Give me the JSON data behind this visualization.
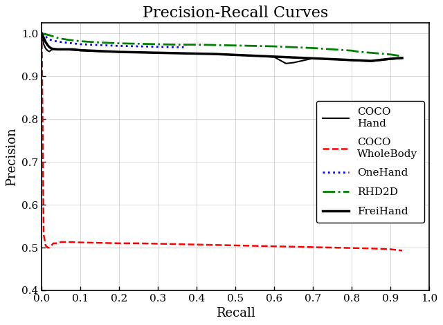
{
  "title": "Precision-Recall Curves",
  "xlabel": "Recall",
  "ylabel": "Precision",
  "xlim": [
    0.0,
    1.0
  ],
  "ylim": [
    0.4,
    1.025
  ],
  "yticks": [
    0.4,
    0.5,
    0.6,
    0.7,
    0.8,
    0.9,
    1.0
  ],
  "xticks": [
    0.0,
    0.1,
    0.2,
    0.3,
    0.4,
    0.5,
    0.6,
    0.7,
    0.8,
    0.9,
    1.0
  ],
  "curves": [
    {
      "label": "COCO\nHand",
      "color": "#000000",
      "linestyle": "solid",
      "linewidth": 1.5,
      "recall": [
        0.0,
        0.005,
        0.01,
        0.015,
        0.02,
        0.025,
        0.03,
        0.04,
        0.05,
        0.07,
        0.1,
        0.15,
        0.2,
        0.25,
        0.3,
        0.35,
        0.4,
        0.45,
        0.5,
        0.55,
        0.6,
        0.63,
        0.65,
        0.7,
        0.75,
        0.8,
        0.85,
        0.9,
        0.93
      ],
      "precision": [
        1.0,
        0.975,
        0.965,
        0.96,
        0.958,
        0.962,
        0.963,
        0.963,
        0.963,
        0.962,
        0.96,
        0.958,
        0.957,
        0.956,
        0.955,
        0.954,
        0.953,
        0.952,
        0.95,
        0.948,
        0.945,
        0.93,
        0.932,
        0.942,
        0.94,
        0.937,
        0.935,
        0.94,
        0.942
      ]
    },
    {
      "label": "COCO\nWholeBody",
      "color": "#ff0000",
      "linestyle": "dashed",
      "linewidth": 1.8,
      "recall": [
        0.0,
        0.005,
        0.01,
        0.015,
        0.02,
        0.025,
        0.03,
        0.04,
        0.05,
        0.07,
        0.1,
        0.15,
        0.2,
        0.25,
        0.3,
        0.35,
        0.4,
        0.45,
        0.5,
        0.55,
        0.6,
        0.65,
        0.7,
        0.75,
        0.8,
        0.85,
        0.9,
        0.93
      ],
      "precision": [
        1.0,
        0.53,
        0.505,
        0.5,
        0.5,
        0.505,
        0.51,
        0.51,
        0.513,
        0.513,
        0.512,
        0.511,
        0.51,
        0.51,
        0.509,
        0.508,
        0.507,
        0.506,
        0.505,
        0.504,
        0.503,
        0.502,
        0.501,
        0.5,
        0.499,
        0.498,
        0.496,
        0.493
      ]
    },
    {
      "label": "OneHand",
      "color": "#0000ff",
      "linestyle": "dotted",
      "linewidth": 2.0,
      "recall": [
        0.0,
        0.005,
        0.01,
        0.02,
        0.03,
        0.05,
        0.07,
        0.1,
        0.15,
        0.2,
        0.25,
        0.3,
        0.35,
        0.37
      ],
      "precision": [
        1.0,
        0.997,
        0.993,
        0.986,
        0.983,
        0.98,
        0.978,
        0.975,
        0.973,
        0.971,
        0.97,
        0.969,
        0.968,
        0.968
      ]
    },
    {
      "label": "RHD2D",
      "color": "#008000",
      "linestyle": "dashdot",
      "linewidth": 2.0,
      "recall": [
        0.0,
        0.005,
        0.01,
        0.02,
        0.03,
        0.04,
        0.05,
        0.07,
        0.1,
        0.15,
        0.2,
        0.25,
        0.3,
        0.35,
        0.4,
        0.45,
        0.5,
        0.55,
        0.6,
        0.65,
        0.7,
        0.75,
        0.8,
        0.82,
        0.85,
        0.9,
        0.93
      ],
      "precision": [
        1.0,
        0.999,
        0.998,
        0.996,
        0.993,
        0.99,
        0.988,
        0.985,
        0.982,
        0.979,
        0.977,
        0.976,
        0.975,
        0.974,
        0.974,
        0.973,
        0.972,
        0.971,
        0.97,
        0.968,
        0.966,
        0.963,
        0.96,
        0.957,
        0.955,
        0.951,
        0.947
      ]
    },
    {
      "label": "FreiHand",
      "color": "#000000",
      "linestyle": "solid",
      "linewidth": 2.5,
      "recall": [
        0.0,
        0.005,
        0.01,
        0.015,
        0.02,
        0.025,
        0.03,
        0.04,
        0.05,
        0.06,
        0.07,
        0.08,
        0.09,
        0.1,
        0.15,
        0.2,
        0.25,
        0.3,
        0.35,
        0.4,
        0.45,
        0.5,
        0.55,
        0.6,
        0.65,
        0.7,
        0.75,
        0.8,
        0.85,
        0.9,
        0.93
      ],
      "precision": [
        1.0,
        0.99,
        0.98,
        0.973,
        0.968,
        0.965,
        0.964,
        0.963,
        0.963,
        0.963,
        0.963,
        0.963,
        0.962,
        0.961,
        0.959,
        0.957,
        0.956,
        0.955,
        0.954,
        0.953,
        0.952,
        0.95,
        0.948,
        0.946,
        0.944,
        0.942,
        0.94,
        0.938,
        0.936,
        0.941,
        0.943
      ]
    }
  ],
  "title_fontsize": 16,
  "label_fontsize": 13,
  "tick_fontsize": 11,
  "legend_fontsize": 11
}
